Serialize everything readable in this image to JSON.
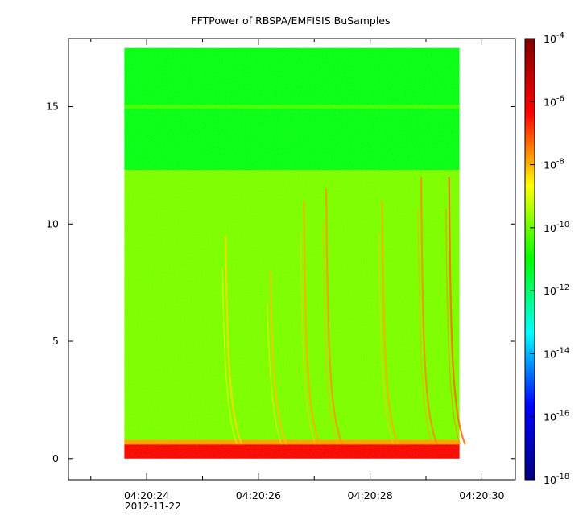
{
  "chart_data": {
    "type": "heatmap",
    "title": "FFTPower of RBSPA/EMFISIS  BuSamples",
    "xlabel": "",
    "ylabel": "",
    "x_axis": {
      "kind": "time",
      "range": [
        "04:20:22.6",
        "04:20:30.6"
      ],
      "tick_labels": [
        "04:20:24",
        "04:20:26",
        "04:20:28",
        "04:20:30"
      ],
      "date_label": "2012-11-22",
      "minor_ticks_every_s": 1
    },
    "y_axis": {
      "range": [
        -0.9,
        17.9
      ],
      "ticks": [
        0,
        5,
        10,
        15
      ]
    },
    "data_extent": {
      "x": [
        "04:20:23.6",
        "04:20:29.6"
      ],
      "y": [
        0,
        17.5
      ]
    },
    "colorbar": {
      "scale": "log",
      "range": [
        1e-18,
        0.0001
      ],
      "tick_exponents": [
        -18,
        -16,
        -14,
        -12,
        -10,
        -8,
        -6,
        -4
      ],
      "tick_base": "10",
      "colormap": "rainbow",
      "stops": [
        "#00007f",
        "#0000ff",
        "#00ffff",
        "#00ff00",
        "#ffff00",
        "#ff0000",
        "#7f0000"
      ]
    },
    "bands": [
      {
        "y_from": 12.3,
        "y_to": 17.5,
        "log_power": -11.2,
        "note_color": "#22f27a"
      },
      {
        "y_from": 14.92,
        "y_to": 15.08,
        "log_power": -10.4,
        "note_color": "#52e43c"
      },
      {
        "y_from": 0.8,
        "y_to": 12.3,
        "log_power": -9.9,
        "note_color": "#40e820"
      },
      {
        "y_from": 0.6,
        "y_to": 0.8,
        "log_power": -7.8,
        "note_color": "#f0d800"
      },
      {
        "y_from": 0.0,
        "y_to": 0.6,
        "log_power": -6.2,
        "note_color": "#ff5a00"
      }
    ],
    "features": [
      {
        "kind": "chorus-streak",
        "t_end": "04:20:25.5",
        "y_top": 9.5,
        "log_power": -8.3
      },
      {
        "kind": "chorus-streak",
        "t_end": "04:20:26.3",
        "y_top": 8.0,
        "log_power": -8.1
      },
      {
        "kind": "chorus-streak",
        "t_end": "04:20:26.9",
        "y_top": 11.0,
        "log_power": -7.9
      },
      {
        "kind": "chorus-streak",
        "t_end": "04:20:27.3",
        "y_top": 11.5,
        "log_power": -7.7
      },
      {
        "kind": "chorus-streak",
        "t_end": "04:20:28.3",
        "y_top": 11.0,
        "log_power": -7.9
      },
      {
        "kind": "chorus-streak",
        "t_end": "04:20:29.0",
        "y_top": 12.0,
        "log_power": -7.6
      },
      {
        "kind": "chorus-streak",
        "t_end": "04:20:29.5",
        "y_top": 12.0,
        "log_power": -7.3
      }
    ]
  }
}
